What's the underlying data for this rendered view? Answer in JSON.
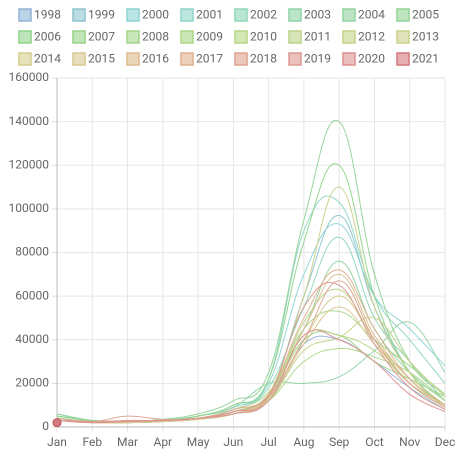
{
  "chart_data": {
    "type": "line",
    "categories": [
      "Jan",
      "Feb",
      "Mar",
      "Apr",
      "May",
      "Jun",
      "Jul",
      "Aug",
      "Sep",
      "Oct",
      "Nov",
      "Dec"
    ],
    "ylim": [
      0,
      160000
    ],
    "yticks": [
      0,
      20000,
      40000,
      60000,
      80000,
      100000,
      120000,
      140000,
      160000
    ],
    "grid": true,
    "legend": "top",
    "series": [
      {
        "name": "1998",
        "color": "#8fb5d6",
        "values": [
          3000,
          2000,
          2000,
          2500,
          3500,
          6000,
          12000,
          38000,
          40000,
          30000,
          18000,
          8000
        ]
      },
      {
        "name": "1999",
        "color": "#8ec4d0",
        "values": [
          4000,
          2500,
          2000,
          2500,
          4000,
          7000,
          14000,
          60000,
          97000,
          55000,
          25000,
          10000
        ]
      },
      {
        "name": "2000",
        "color": "#8dd3d3",
        "values": [
          5000,
          3000,
          2500,
          3000,
          5000,
          9000,
          20000,
          70000,
          93000,
          60000,
          45000,
          28000
        ]
      },
      {
        "name": "2001",
        "color": "#8fd6c8",
        "values": [
          6000,
          3000,
          2500,
          3000,
          5000,
          10000,
          22000,
          90000,
          103000,
          60000,
          40000,
          20000
        ]
      },
      {
        "name": "2002",
        "color": "#8fd6b8",
        "values": [
          4000,
          2500,
          2000,
          2500,
          4000,
          8000,
          18000,
          55000,
          87000,
          50000,
          30000,
          12000
        ]
      },
      {
        "name": "2003",
        "color": "#8fd4a8",
        "values": [
          5000,
          3000,
          2500,
          3000,
          5000,
          9000,
          20000,
          20000,
          23000,
          35000,
          48000,
          25000
        ]
      },
      {
        "name": "2004",
        "color": "#91d39f",
        "values": [
          4000,
          2000,
          2000,
          2500,
          4000,
          7000,
          15000,
          45000,
          76000,
          45000,
          25000,
          12000
        ]
      },
      {
        "name": "2005",
        "color": "#93d395",
        "values": [
          6000,
          3000,
          2500,
          3500,
          6000,
          12000,
          25000,
          95000,
          140000,
          70000,
          30000,
          15000
        ]
      },
      {
        "name": "2006",
        "color": "#8fd48a",
        "values": [
          5000,
          3000,
          2500,
          3000,
          5000,
          10000,
          22000,
          85000,
          120000,
          60000,
          25000,
          10000
        ]
      },
      {
        "name": "2007",
        "color": "#98d488",
        "values": [
          3000,
          2000,
          2000,
          2500,
          4000,
          7000,
          14000,
          40000,
          42000,
          30000,
          22000,
          14000
        ]
      },
      {
        "name": "2008",
        "color": "#a3d68a",
        "values": [
          3000,
          2000,
          2000,
          2500,
          4000,
          7000,
          15000,
          45000,
          53000,
          40000,
          28000,
          15000
        ]
      },
      {
        "name": "2009",
        "color": "#acd686",
        "values": [
          3000,
          2000,
          2000,
          2500,
          3500,
          6000,
          12000,
          30000,
          36000,
          32000,
          25000,
          12000
        ]
      },
      {
        "name": "2010",
        "color": "#b5d684",
        "values": [
          4000,
          2500,
          2000,
          2500,
          4000,
          8000,
          16000,
          42000,
          42000,
          35000,
          20000,
          10000
        ]
      },
      {
        "name": "2011",
        "color": "#bdd38a",
        "values": [
          3000,
          2000,
          2000,
          2500,
          3500,
          6000,
          13000,
          48000,
          63000,
          40000,
          22000,
          9000
        ]
      },
      {
        "name": "2012",
        "color": "#c4d388",
        "values": [
          3000,
          2000,
          2000,
          2500,
          3500,
          6000,
          12000,
          35000,
          41000,
          50000,
          30000,
          14000
        ]
      },
      {
        "name": "2013",
        "color": "#ccd08a",
        "values": [
          3000,
          2000,
          2000,
          2500,
          4000,
          7000,
          15000,
          60000,
          110000,
          55000,
          25000,
          10000
        ]
      },
      {
        "name": "2014",
        "color": "#d6ce8c",
        "values": [
          3000,
          2000,
          2000,
          2500,
          3500,
          6000,
          13000,
          40000,
          60000,
          40000,
          20000,
          9000
        ]
      },
      {
        "name": "2015",
        "color": "#d9c690",
        "values": [
          3000,
          2000,
          2000,
          2500,
          3500,
          6000,
          12000,
          38000,
          55000,
          38000,
          20000,
          9000
        ]
      },
      {
        "name": "2016",
        "color": "#dcbc8e",
        "values": [
          3000,
          2000,
          2500,
          3000,
          4000,
          7000,
          14000,
          45000,
          70000,
          42000,
          22000,
          10000
        ]
      },
      {
        "name": "2017",
        "color": "#ddb08e",
        "values": [
          3000,
          2000,
          3000,
          3000,
          4000,
          7000,
          15000,
          50000,
          72000,
          45000,
          22000,
          10000
        ]
      },
      {
        "name": "2018",
        "color": "#dda48e",
        "values": [
          4000,
          2500,
          5000,
          3500,
          4000,
          8000,
          14000,
          40000,
          67000,
          40000,
          20000,
          9000
        ]
      },
      {
        "name": "2019",
        "color": "#dd9890",
        "values": [
          3000,
          2500,
          3000,
          3000,
          4000,
          7000,
          14000,
          55000,
          65000,
          38000,
          18000,
          8000
        ]
      },
      {
        "name": "2020",
        "color": "#dc9192",
        "values": [
          3000,
          2000,
          2500,
          3000,
          4000,
          6000,
          12000,
          42000,
          40000,
          30000,
          15000,
          7000
        ]
      },
      {
        "name": "2021",
        "color": "#d4787f",
        "values": [
          2000,
          null,
          null,
          null,
          null,
          null,
          null,
          null,
          null,
          null,
          null,
          null
        ]
      }
    ]
  }
}
